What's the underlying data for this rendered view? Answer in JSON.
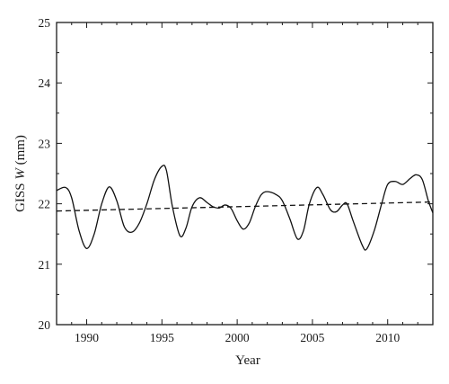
{
  "chart_data": {
    "type": "line",
    "title": "",
    "xlabel": "Year",
    "ylabel_prefix": "GISS ",
    "ylabel_var": "W",
    "ylabel_suffix": " (mm)",
    "xlim": [
      1988,
      2013
    ],
    "ylim": [
      20,
      25
    ],
    "x_ticks": [
      1990,
      1995,
      2000,
      2005,
      2010
    ],
    "y_ticks": [
      20,
      21,
      22,
      23,
      24,
      25
    ],
    "grid": false,
    "series": [
      {
        "values": [
          [
            1988.0,
            22.22
          ],
          [
            1988.6,
            22.27
          ],
          [
            1989.0,
            22.1
          ],
          [
            1989.5,
            21.55
          ],
          [
            1990.0,
            21.26
          ],
          [
            1990.5,
            21.5
          ],
          [
            1991.0,
            22.0
          ],
          [
            1991.5,
            22.28
          ],
          [
            1992.0,
            22.05
          ],
          [
            1992.5,
            21.62
          ],
          [
            1993.0,
            21.53
          ],
          [
            1993.5,
            21.68
          ],
          [
            1994.0,
            22.0
          ],
          [
            1994.5,
            22.4
          ],
          [
            1995.0,
            22.62
          ],
          [
            1995.3,
            22.55
          ],
          [
            1995.7,
            21.95
          ],
          [
            1996.2,
            21.47
          ],
          [
            1996.6,
            21.6
          ],
          [
            1997.0,
            21.95
          ],
          [
            1997.5,
            22.1
          ],
          [
            1998.0,
            22.02
          ],
          [
            1998.4,
            21.95
          ],
          [
            1998.8,
            21.93
          ],
          [
            1999.2,
            21.98
          ],
          [
            1999.6,
            21.92
          ],
          [
            2000.0,
            21.72
          ],
          [
            2000.4,
            21.58
          ],
          [
            2000.8,
            21.68
          ],
          [
            2001.2,
            21.95
          ],
          [
            2001.6,
            22.15
          ],
          [
            2002.0,
            22.2
          ],
          [
            2002.6,
            22.15
          ],
          [
            2003.0,
            22.05
          ],
          [
            2003.5,
            21.75
          ],
          [
            2004.0,
            21.42
          ],
          [
            2004.4,
            21.55
          ],
          [
            2004.8,
            22.0
          ],
          [
            2005.3,
            22.27
          ],
          [
            2005.7,
            22.15
          ],
          [
            2006.2,
            21.9
          ],
          [
            2006.6,
            21.87
          ],
          [
            2007.0,
            21.98
          ],
          [
            2007.3,
            22.0
          ],
          [
            2007.7,
            21.72
          ],
          [
            2008.3,
            21.32
          ],
          [
            2008.6,
            21.25
          ],
          [
            2009.1,
            21.55
          ],
          [
            2009.6,
            22.0
          ],
          [
            2010.0,
            22.32
          ],
          [
            2010.5,
            22.37
          ],
          [
            2011.0,
            22.32
          ],
          [
            2011.5,
            22.42
          ],
          [
            2011.9,
            22.48
          ],
          [
            2012.3,
            22.4
          ],
          [
            2012.7,
            22.05
          ],
          [
            2013.0,
            21.85
          ]
        ]
      },
      {
        "values": [
          [
            1988.0,
            21.88
          ],
          [
            2013.0,
            22.03
          ]
        ]
      }
    ]
  }
}
